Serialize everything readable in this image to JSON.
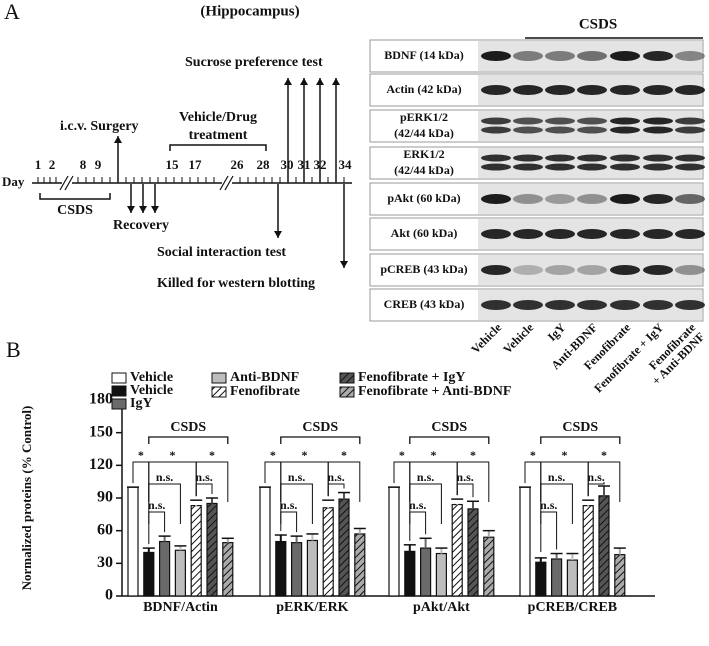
{
  "panel_a": {
    "label": "A",
    "title": "(Hippocampus)",
    "timeline": {
      "axis_label": "Day",
      "days": [
        "1",
        "2",
        "8",
        "9",
        "15",
        "17",
        "26",
        "28",
        "30",
        "31",
        "32",
        "34"
      ],
      "csds": "CSDS",
      "surgery": "i.c.v. Surgery",
      "treatment": [
        "Vehicle/Drug",
        "treatment"
      ],
      "sucrose": "Sucrose preference test",
      "recovery": "Recovery",
      "social": "Social interaction test",
      "killed": "Killed for western blotting"
    },
    "blot": {
      "group_label": "CSDS",
      "rows": [
        [
          "BDNF (14 kDa)"
        ],
        [
          "Actin (42 kDa)"
        ],
        [
          "pERK1/2",
          "(42/44 kDa)"
        ],
        [
          "ERK1/2",
          "(42/44 kDa)"
        ],
        [
          "pAkt  (60 kDa)"
        ],
        [
          "Akt  (60 kDa)"
        ],
        [
          "pCREB (43 kDa)"
        ],
        [
          "CREB (43 kDa)"
        ]
      ],
      "lanes": [
        [
          "Vehicle"
        ],
        [
          "Vehicle"
        ],
        [
          "IgY"
        ],
        [
          "Anti-BDNF"
        ],
        [
          "Fenofibrate"
        ],
        [
          "Fenofibrate + IgY"
        ],
        [
          "Fenofibrate",
          "+ Anti-BDNF"
        ]
      ]
    }
  },
  "chart_data": {
    "type": "bar",
    "panel_label": "B",
    "y_label": "Normalized proteins (% Control)",
    "categories": [
      "BDNF/Actin",
      "pERK/ERK",
      "pAkt/Akt",
      "pCREB/CREB"
    ],
    "series": [
      {
        "name": "Vehicle",
        "color": "#ffffff",
        "hatch": false,
        "values": [
          100,
          100,
          100,
          100
        ],
        "errors": [
          0,
          0,
          0,
          0
        ]
      },
      {
        "name": "Vehicle",
        "color": "#111111",
        "hatch": false,
        "values": [
          40,
          50,
          41,
          31
        ],
        "errors": [
          4,
          6,
          6,
          4
        ]
      },
      {
        "name": "IgY",
        "color": "#6a6a6a",
        "hatch": false,
        "values": [
          50,
          49,
          44,
          34
        ],
        "errors": [
          5,
          6,
          9,
          5
        ]
      },
      {
        "name": "Anti-BDNF",
        "color": "#bdbdbd",
        "hatch": false,
        "values": [
          42,
          51,
          39,
          33
        ],
        "errors": [
          4,
          6,
          5,
          6
        ]
      },
      {
        "name": "Fenofibrate",
        "color": "#ffffff",
        "hatch": true,
        "values": [
          83,
          81,
          84,
          83
        ],
        "errors": [
          5,
          7,
          5,
          5
        ]
      },
      {
        "name": "Fenofibrate + IgY",
        "color": "#555555",
        "hatch": true,
        "values": [
          85,
          89,
          80,
          92
        ],
        "errors": [
          5,
          6,
          7,
          9
        ]
      },
      {
        "name": "Fenofibrate + Anti-BDNF",
        "color": "#aaaaaa",
        "hatch": true,
        "values": [
          49,
          57,
          54,
          38
        ],
        "errors": [
          4,
          5,
          6,
          6
        ]
      }
    ],
    "ylim": [
      0,
      180
    ],
    "yticks": [
      0,
      30,
      60,
      90,
      120,
      150,
      180
    ],
    "bracket_label": "CSDS",
    "significance": [
      [
        "*",
        "*",
        "n.s.",
        "n.s.",
        "*",
        "n.s."
      ],
      [
        "*",
        "*",
        "n.s.",
        "n.s.",
        "*",
        "n.s."
      ],
      [
        "*",
        "*",
        "n.s.",
        "n.s.",
        "*",
        "n.s."
      ],
      [
        "*",
        "*",
        "n.s.",
        "n.s.",
        "*",
        "n.s."
      ]
    ]
  }
}
